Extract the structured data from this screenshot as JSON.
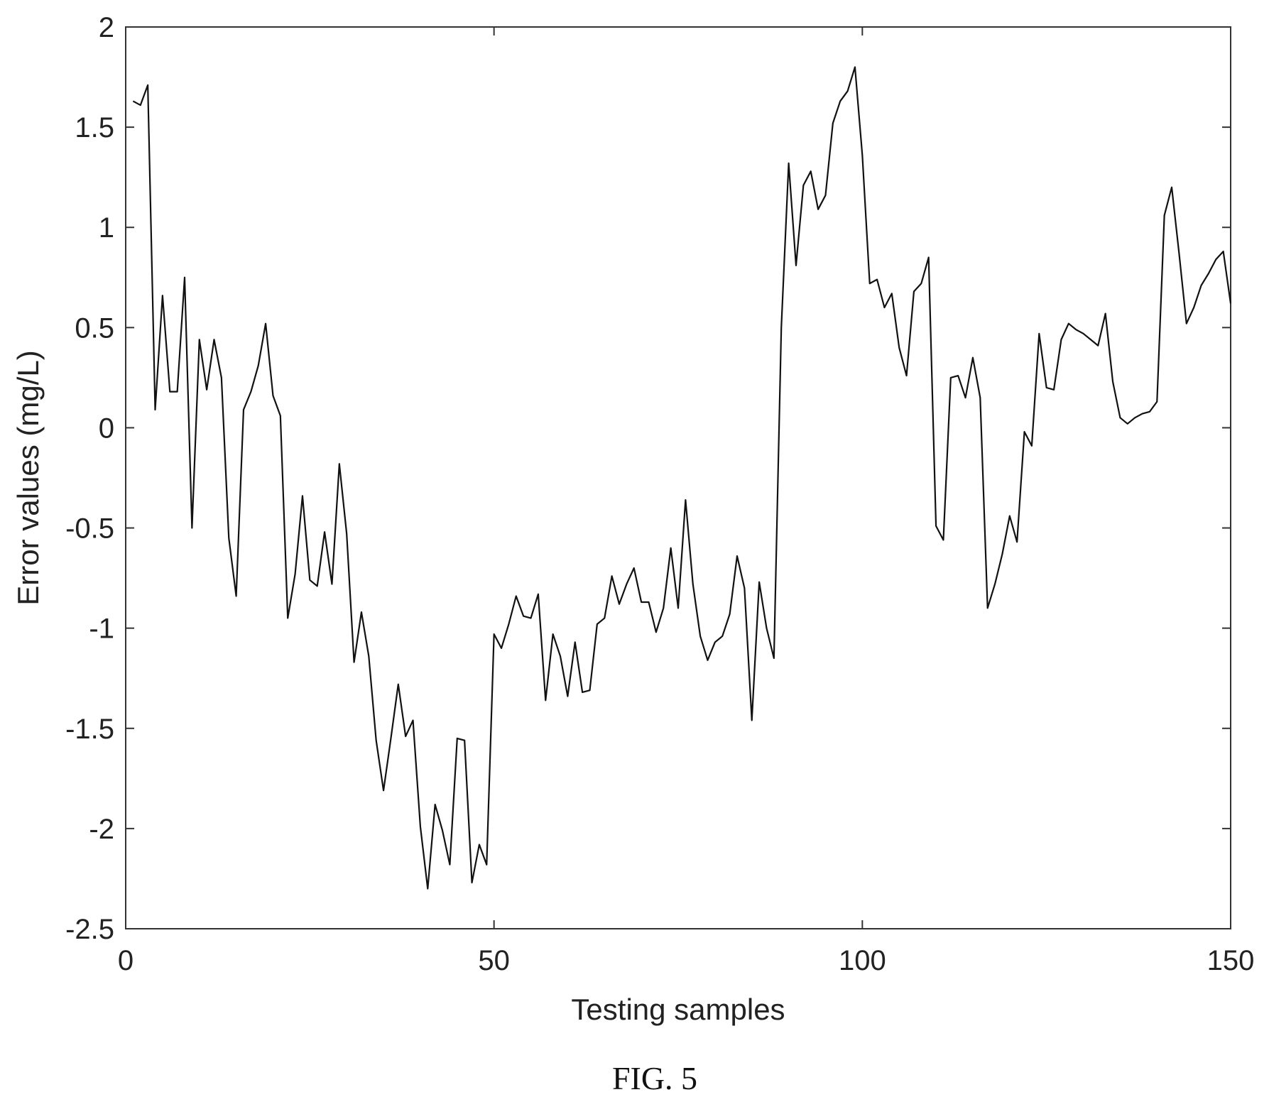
{
  "figure": {
    "caption": "FIG. 5"
  },
  "chart_data": {
    "type": "line",
    "title": "",
    "xlabel": "Testing samples",
    "ylabel": "Error values (mg/L)",
    "xlim": [
      0,
      150
    ],
    "ylim": [
      -2.5,
      2
    ],
    "xticks": [
      0,
      50,
      100,
      150
    ],
    "yticks": [
      -2.5,
      -2,
      -1.5,
      -1,
      -0.5,
      0,
      0.5,
      1,
      1.5,
      2
    ],
    "xtick_labels": [
      "0",
      "50",
      "100",
      "150"
    ],
    "ytick_labels": [
      "-2.5",
      "-2",
      "-1.5",
      "-1",
      "-0.5",
      "0",
      "0.5",
      "1",
      "1.5",
      "2"
    ],
    "grid": false,
    "legend": "none",
    "series": [
      {
        "color": "#111111",
        "x": [
          1,
          2,
          3,
          4,
          5,
          6,
          7,
          8,
          9,
          10,
          11,
          12,
          13,
          14,
          15,
          16,
          17,
          18,
          19,
          20,
          21,
          22,
          23,
          24,
          25,
          26,
          27,
          28,
          29,
          30,
          31,
          32,
          33,
          34,
          35,
          36,
          37,
          38,
          39,
          40,
          41,
          42,
          43,
          44,
          45,
          46,
          47,
          48,
          49,
          50,
          51,
          52,
          53,
          54,
          55,
          56,
          57,
          58,
          59,
          60,
          61,
          62,
          63,
          64,
          65,
          66,
          67,
          68,
          69,
          70,
          71,
          72,
          73,
          74,
          75,
          76,
          77,
          78,
          79,
          80,
          81,
          82,
          83,
          84,
          85,
          86,
          87,
          88,
          89,
          90,
          91,
          92,
          93,
          94,
          95,
          96,
          97,
          98,
          99,
          100,
          101,
          102,
          103,
          104,
          105,
          106,
          107,
          108,
          109,
          110,
          111,
          112,
          113,
          114,
          115,
          116,
          117,
          118,
          119,
          120,
          121,
          122,
          123,
          124,
          125,
          126,
          127,
          128,
          129,
          130,
          131,
          132,
          133,
          134,
          135,
          136,
          137,
          138,
          139,
          140,
          141,
          142,
          143,
          144,
          145,
          146,
          147,
          148,
          149,
          150
        ],
        "y": [
          1.63,
          1.61,
          1.71,
          0.09,
          0.66,
          0.18,
          0.18,
          0.75,
          -0.5,
          0.44,
          0.19,
          0.44,
          0.25,
          -0.55,
          -0.84,
          0.09,
          0.18,
          0.31,
          0.52,
          0.16,
          0.06,
          -0.95,
          -0.73,
          -0.34,
          -0.76,
          -0.79,
          -0.52,
          -0.78,
          -0.18,
          -0.53,
          -1.17,
          -0.92,
          -1.14,
          -1.56,
          -1.81,
          -1.55,
          -1.28,
          -1.54,
          -1.46,
          -1.99,
          -2.3,
          -1.88,
          -2.01,
          -2.18,
          -1.55,
          -1.56,
          -2.27,
          -2.08,
          -2.18,
          -1.03,
          -1.1,
          -0.98,
          -0.84,
          -0.94,
          -0.95,
          -0.83,
          -1.36,
          -1.03,
          -1.14,
          -1.34,
          -1.07,
          -1.32,
          -1.31,
          -0.98,
          -0.95,
          -0.74,
          -0.88,
          -0.78,
          -0.7,
          -0.87,
          -0.87,
          -1.02,
          -0.9,
          -0.6,
          -0.9,
          -0.36,
          -0.78,
          -1.04,
          -1.16,
          -1.07,
          -1.04,
          -0.93,
          -0.64,
          -0.8,
          -1.46,
          -0.77,
          -1.0,
          -1.15,
          0.5,
          1.32,
          0.81,
          1.21,
          1.28,
          1.09,
          1.16,
          1.52,
          1.63,
          1.68,
          1.8,
          1.36,
          0.72,
          0.74,
          0.6,
          0.67,
          0.4,
          0.26,
          0.68,
          0.72,
          0.85,
          -0.49,
          -0.56,
          0.25,
          0.26,
          0.15,
          0.35,
          0.15,
          -0.9,
          -0.78,
          -0.63,
          -0.44,
          -0.57,
          -0.02,
          -0.09,
          0.47,
          0.2,
          0.19,
          0.44,
          0.52,
          0.49,
          0.47,
          0.44,
          0.41,
          0.57,
          0.23,
          0.05,
          0.02,
          0.05,
          0.07,
          0.08,
          0.13,
          1.06,
          1.2,
          0.87,
          0.52,
          0.6,
          0.71,
          0.77,
          0.84,
          0.88,
          0.62
        ]
      }
    ]
  }
}
